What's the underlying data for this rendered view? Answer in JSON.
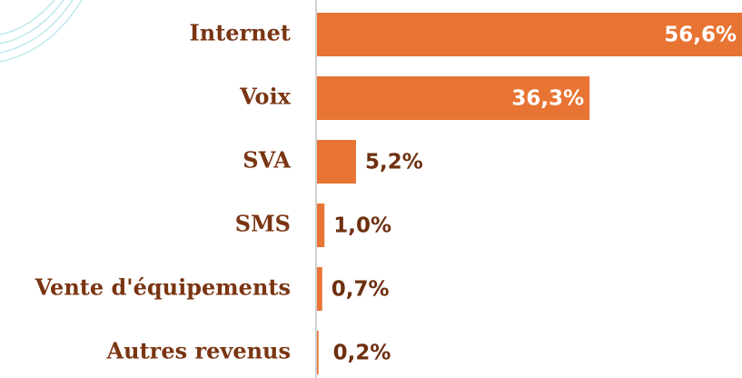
{
  "chart_data": {
    "type": "bar",
    "orientation": "horizontal",
    "categories": [
      "Internet",
      "Voix",
      "SVA",
      "SMS",
      "Vente d'équipements",
      "Autres revenus"
    ],
    "values": [
      56.6,
      36.3,
      5.2,
      1.0,
      0.7,
      0.2
    ],
    "value_labels": [
      "56,6%",
      "36,3%",
      "5,2%",
      "1,0%",
      "0,7%",
      "0,2%"
    ],
    "color": "#e87433"
  }
}
